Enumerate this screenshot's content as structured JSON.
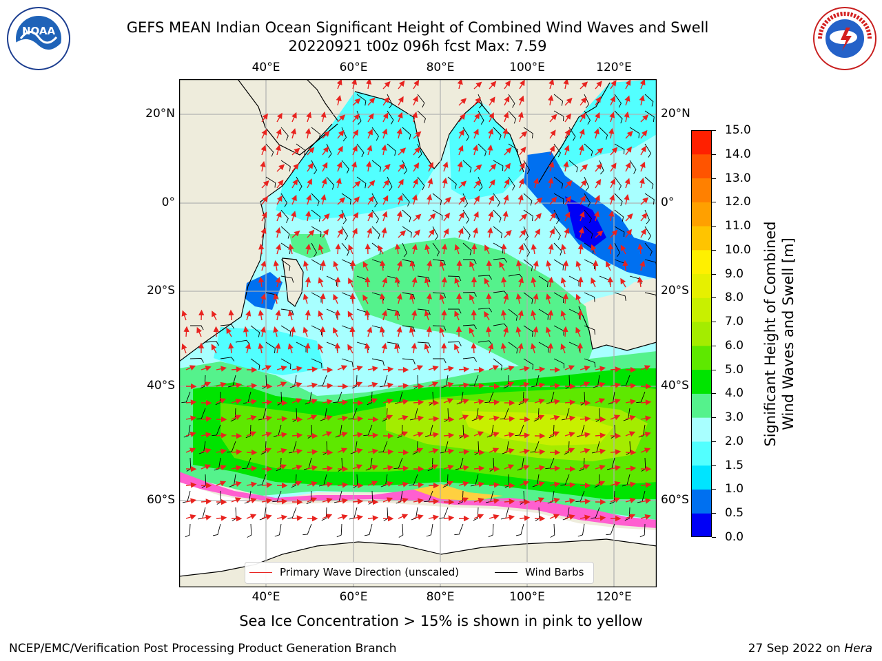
{
  "title": {
    "line1": "GEFS MEAN Indian Ocean Significant Height of Combined Wind Waves and Swell",
    "line2": "20220921 t00z 096h fcst   Max: 7.59"
  },
  "logos": {
    "left": {
      "text": "NOAA",
      "icon": "noaa-logo"
    },
    "right": {
      "text": "NATIONAL WEATHER SERVICE",
      "icon": "nws-logo"
    }
  },
  "map": {
    "lon_ticks_top": [
      "40°E",
      "60°E",
      "80°E",
      "100°E",
      "120°E"
    ],
    "lon_ticks_bottom": [
      "40°E",
      "60°E",
      "80°E",
      "100°E",
      "120°E"
    ],
    "lat_ticks_left": [
      "20°N",
      "0°",
      "20°S",
      "40°S",
      "60°S"
    ],
    "lat_ticks_right": [
      "20°N",
      "0°",
      "20°S",
      "40°S",
      "60°S"
    ],
    "lon_range": [
      20,
      130
    ],
    "lat_range": [
      -75,
      27
    ],
    "colors": {
      "land": "#eeecdc",
      "ice_pink": "#ff5fd0",
      "ice_yellow": "#ffd040",
      "wave_arrow": "#e8231f",
      "wind_barb": "#000000"
    }
  },
  "colorbar": {
    "title_line1": "Significant Height of Combined",
    "title_line2": "Wind Waves and Swell [m]",
    "labels": [
      "0.0",
      "0.5",
      "1.0",
      "1.5",
      "2.0",
      "3.0",
      "4.0",
      "5.0",
      "6.0",
      "7.0",
      "8.0",
      "9.0",
      "10.0",
      "11.0",
      "12.0",
      "13.0",
      "14.0",
      "15.0"
    ],
    "colors": [
      "#0000f6",
      "#0070f0",
      "#00e4ff",
      "#52ffff",
      "#a8ffff",
      "#55f28c",
      "#00e400",
      "#5ee800",
      "#a4ec00",
      "#c8f000",
      "#e6f000",
      "#fff000",
      "#ffc400",
      "#ffa000",
      "#ff8000",
      "#ff5400",
      "#ff2000"
    ]
  },
  "legend": {
    "wave_label": "Primary Wave Direction (unscaled)",
    "wind_label": "Wind Barbs"
  },
  "caption": "Sea Ice Concentration > 15% is shown in pink to yellow",
  "footer": {
    "left": "NCEP/EMC/Verification Post Processing Product Generation Branch",
    "right_date": "27 Sep 2022 on ",
    "right_host": "Hera"
  }
}
